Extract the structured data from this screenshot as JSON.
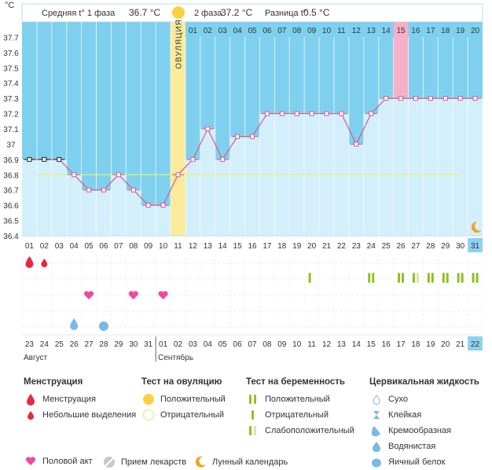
{
  "header": {
    "unit": "°C",
    "phase1_label": "Средняя t° 1 фаза",
    "phase1_value": "36.7 °C",
    "phase2_label": "2 фаза",
    "phase2_value": "37.2 °C",
    "diff_label": "Разница t°",
    "diff_value": "0.5 °C"
  },
  "chart_data": {
    "type": "line",
    "ylim": [
      36.4,
      37.8
    ],
    "y_ticks": [
      "37.7",
      "37.6",
      "37.5",
      "37.4",
      "37.3",
      "37.2",
      "37.1",
      "37",
      "36.9",
      "36.8",
      "36.7",
      "36.6",
      "36.5",
      "36.4"
    ],
    "y_tick_values": [
      37.7,
      37.6,
      37.5,
      37.4,
      37.3,
      37.2,
      37.1,
      37.0,
      36.9,
      36.8,
      36.7,
      36.6,
      36.5,
      36.4
    ],
    "cycle_days": [
      "01",
      "02",
      "03",
      "04",
      "05",
      "06",
      "07",
      "08",
      "09",
      "10",
      "11",
      "12",
      "13",
      "14",
      "15",
      "16",
      "17",
      "18",
      "19",
      "20",
      "21",
      "22",
      "23",
      "24",
      "25",
      "26",
      "27",
      "28",
      "29",
      "30",
      "31"
    ],
    "top_days": [
      "01",
      "02",
      "03",
      "04",
      "05",
      "06",
      "07",
      "08",
      "09",
      "10",
      "11",
      "12",
      "13",
      "14",
      "15",
      "16",
      "17",
      "18",
      "19",
      "20"
    ],
    "series": [
      {
        "values": [
          36.9,
          36.9,
          36.9,
          36.8,
          36.7,
          36.7,
          36.8,
          36.7,
          36.6,
          36.6,
          36.8,
          36.9,
          37.1,
          36.9,
          37.05,
          37.05,
          37.2,
          37.2,
          37.2,
          37.2,
          37.2,
          37.2,
          37.0,
          37.2,
          37.3,
          37.3,
          37.3,
          37.3,
          37.3,
          37.3,
          37.3
        ]
      }
    ],
    "coverline": 36.8,
    "ovulation_day": 11,
    "ovulation_label": "ОВУЛЯЦИЯ",
    "highlight_day": 26,
    "calendar_days": [
      "23",
      "24",
      "25",
      "26",
      "27",
      "28",
      "29",
      "30",
      "31",
      "01",
      "02",
      "03",
      "04",
      "05",
      "06",
      "07",
      "08",
      "09",
      "10",
      "11",
      "12",
      "13",
      "14",
      "15",
      "16",
      "17",
      "18",
      "19",
      "20",
      "21",
      "22"
    ],
    "calendar_red_idx": [
      5,
      6,
      12,
      13,
      19,
      20,
      26,
      27
    ],
    "months": [
      "Август",
      "Сентябрь"
    ],
    "menstruation_days": [
      1
    ],
    "spotting_days": [
      2
    ],
    "intercourse_days": [
      5,
      8,
      10
    ],
    "watery_days": [
      4
    ],
    "eggwhite_days": [
      6
    ],
    "positive_tests": [
      20,
      24,
      26,
      27,
      28,
      29,
      30,
      31
    ],
    "faint_tests": [
      25,
      27
    ],
    "lunar_day": 31
  },
  "legend": {
    "menstruation_title": "Менструация",
    "menstruation": "Менструация",
    "spotting": "Небольшие выделения",
    "ovulation_title": "Тест на овуляцию",
    "ov_positive": "Положительный",
    "ov_negative": "Отрицательный",
    "pregnancy_title": "Тест на беременность",
    "pr_positive": "Положительный",
    "pr_negative": "Отрицательный",
    "pr_faint": "Слабоположительный",
    "cervical_title": "Цервикальная жидкость",
    "dry": "Сухо",
    "sticky": "Клейкая",
    "creamy": "Кремообразная",
    "watery": "Водянистая",
    "eggwhite": "Яичный белок",
    "intercourse": "Половой акт",
    "medication": "Прием лекарств",
    "lunar": "Лунный календарь"
  },
  "colors": {
    "sky": "#7fd0ef",
    "bar": "#d3effb",
    "line": "#d85a8a",
    "ovulation": "#fbeb9a",
    "highlight": "#f6b0c8",
    "coverline": "#e8f06a",
    "red": "#e8283c",
    "pink": "#f04a9a",
    "green": "#8ec21f",
    "blue": "#7ab8e8",
    "orange": "#f2a41c"
  }
}
